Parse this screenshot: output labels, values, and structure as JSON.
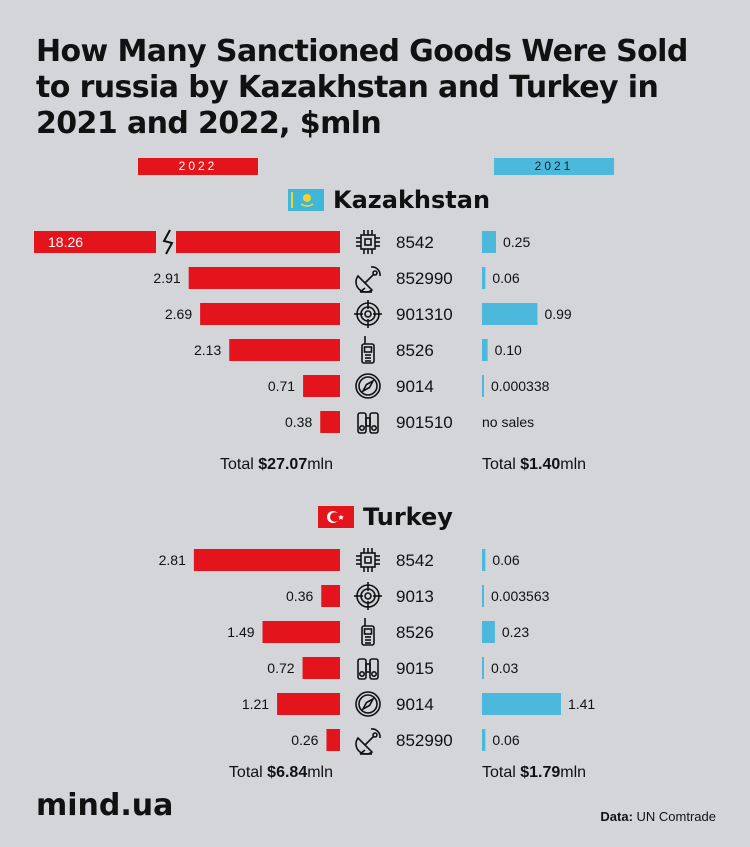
{
  "title": "How Many Sanctioned Goods Were Sold to russia by Kazakhstan and Turkey in 2021 and 2022, $mln",
  "legend": {
    "y2022": "2022",
    "y2021": "2021",
    "color_2022": "#e3141c",
    "color_2021": "#4bb8dc"
  },
  "chart_data": [
    {
      "type": "bar",
      "title": "Kazakhstan",
      "flag_icon": "kazakhstan-flag-icon",
      "categories": [
        "8542",
        "852990",
        "901310",
        "8526",
        "9014",
        "901510"
      ],
      "icons": [
        "chip-icon",
        "satellite-dish-icon",
        "crosshair-icon",
        "walkie-talkie-icon",
        "compass-icon",
        "binoculars-icon"
      ],
      "series": [
        {
          "name": "2022",
          "values": [
            18.26,
            2.91,
            2.69,
            2.13,
            0.71,
            0.38
          ],
          "labels": [
            "18.26",
            "2.91",
            "2.69",
            "2.13",
            "0.71",
            "0.38"
          ]
        },
        {
          "name": "2021",
          "values": [
            0.25,
            0.06,
            0.99,
            0.1,
            0.000338,
            0
          ],
          "labels": [
            "0.25",
            "0.06",
            "0.99",
            "0.10",
            "0.000338",
            "no sales"
          ]
        }
      ],
      "total_label": "Total",
      "total_unit": "mln",
      "total_2022": "$27.07",
      "total_2021": "$1.40",
      "axis_break_after": 2.91
    },
    {
      "type": "bar",
      "title": "Turkey",
      "flag_icon": "turkey-flag-icon",
      "categories": [
        "8542",
        "9013",
        "8526",
        "9015",
        "9014",
        "852990"
      ],
      "icons": [
        "chip-icon",
        "crosshair-icon",
        "walkie-talkie-icon",
        "binoculars-icon",
        "compass-icon",
        "satellite-dish-icon"
      ],
      "series": [
        {
          "name": "2022",
          "values": [
            2.81,
            0.36,
            1.49,
            0.72,
            1.21,
            0.26
          ],
          "labels": [
            "2.81",
            "0.36",
            "1.49",
            "0.72",
            "1.21",
            "0.26"
          ]
        },
        {
          "name": "2021",
          "values": [
            0.06,
            0.003563,
            0.23,
            0.03,
            1.41,
            0.06
          ],
          "labels": [
            "0.06",
            "0.003563",
            "0.23",
            "0.03",
            "1.41",
            "0.06"
          ]
        }
      ],
      "total_label": "Total",
      "total_unit": "mln",
      "total_2022": "$6.84",
      "total_2021": "$1.79"
    }
  ],
  "footer": {
    "logo": "mind.ua",
    "source_label": "Data:",
    "source_value": "UN Comtrade"
  }
}
